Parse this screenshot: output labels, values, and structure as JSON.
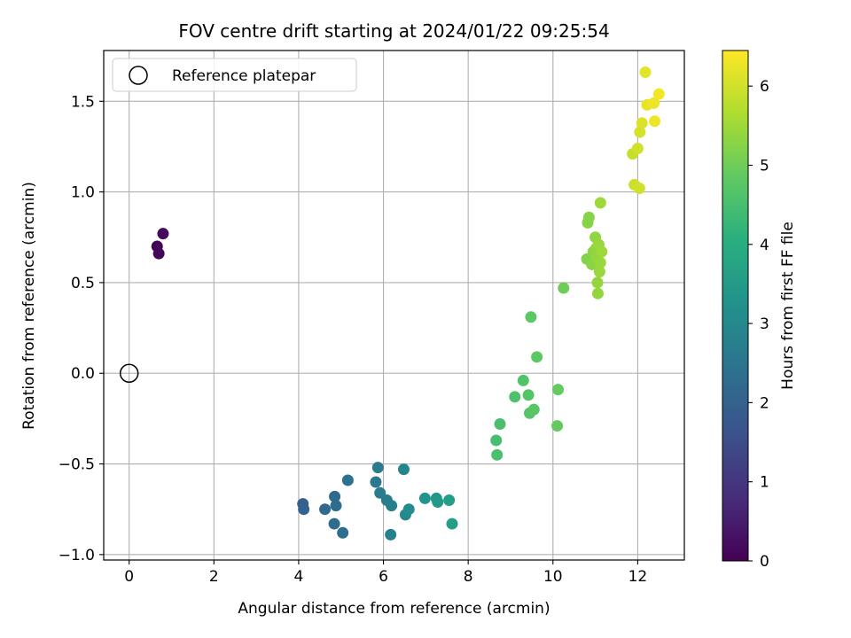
{
  "chart_data": {
    "type": "scatter",
    "title": "FOV centre drift starting at 2024/01/22 09:25:54",
    "xlabel": "Angular distance from reference (arcmin)",
    "ylabel": "Rotation from reference (arcmin)",
    "xlim": [
      -0.6,
      13.1
    ],
    "ylim": [
      -1.03,
      1.78
    ],
    "xticks": [
      0,
      2,
      4,
      6,
      8,
      10,
      12
    ],
    "yticks": [
      -1.0,
      -0.5,
      0.0,
      0.5,
      1.0,
      1.5
    ],
    "grid": true,
    "colormap": "viridis",
    "colorbar": {
      "label": "Hours from first FF file",
      "range": [
        0,
        6.45
      ],
      "ticks": [
        0,
        1,
        2,
        3,
        4,
        5,
        6
      ]
    },
    "legend": {
      "position": "upper-left",
      "entries": [
        "Reference platepar"
      ]
    },
    "reference_point": {
      "x": 0,
      "y": 0,
      "label": "Reference platepar"
    },
    "points": [
      {
        "x": 0.66,
        "y": 0.7,
        "c": 0.05
      },
      {
        "x": 0.7,
        "y": 0.66,
        "c": 0.1
      },
      {
        "x": 0.8,
        "y": 0.77,
        "c": 0.15
      },
      {
        "x": 4.1,
        "y": -0.72,
        "c": 2.0
      },
      {
        "x": 4.12,
        "y": -0.75,
        "c": 2.05
      },
      {
        "x": 4.62,
        "y": -0.75,
        "c": 2.2
      },
      {
        "x": 4.85,
        "y": -0.68,
        "c": 2.25
      },
      {
        "x": 4.88,
        "y": -0.73,
        "c": 2.3
      },
      {
        "x": 4.84,
        "y": -0.83,
        "c": 2.3
      },
      {
        "x": 5.04,
        "y": -0.88,
        "c": 2.35
      },
      {
        "x": 5.16,
        "y": -0.59,
        "c": 2.4
      },
      {
        "x": 5.82,
        "y": -0.6,
        "c": 2.6
      },
      {
        "x": 5.87,
        "y": -0.52,
        "c": 2.65
      },
      {
        "x": 5.92,
        "y": -0.66,
        "c": 2.65
      },
      {
        "x": 6.08,
        "y": -0.7,
        "c": 2.7
      },
      {
        "x": 6.19,
        "y": -0.73,
        "c": 2.75
      },
      {
        "x": 6.17,
        "y": -0.89,
        "c": 2.8
      },
      {
        "x": 6.48,
        "y": -0.53,
        "c": 2.9
      },
      {
        "x": 6.52,
        "y": -0.78,
        "c": 3.0
      },
      {
        "x": 6.6,
        "y": -0.75,
        "c": 3.1
      },
      {
        "x": 6.98,
        "y": -0.69,
        "c": 3.3
      },
      {
        "x": 7.25,
        "y": -0.69,
        "c": 3.4
      },
      {
        "x": 7.28,
        "y": -0.71,
        "c": 3.45
      },
      {
        "x": 7.55,
        "y": -0.7,
        "c": 3.55
      },
      {
        "x": 7.62,
        "y": -0.83,
        "c": 3.6
      },
      {
        "x": 8.66,
        "y": -0.37,
        "c": 4.5
      },
      {
        "x": 8.68,
        "y": -0.45,
        "c": 4.55
      },
      {
        "x": 8.75,
        "y": -0.28,
        "c": 4.55
      },
      {
        "x": 9.1,
        "y": -0.13,
        "c": 4.6
      },
      {
        "x": 9.3,
        "y": -0.04,
        "c": 4.65
      },
      {
        "x": 9.42,
        "y": -0.12,
        "c": 4.7
      },
      {
        "x": 9.45,
        "y": -0.22,
        "c": 4.7
      },
      {
        "x": 9.55,
        "y": -0.2,
        "c": 4.75
      },
      {
        "x": 9.48,
        "y": 0.31,
        "c": 4.8
      },
      {
        "x": 9.62,
        "y": 0.09,
        "c": 4.8
      },
      {
        "x": 10.1,
        "y": -0.29,
        "c": 4.9
      },
      {
        "x": 10.12,
        "y": -0.09,
        "c": 4.9
      },
      {
        "x": 10.25,
        "y": 0.47,
        "c": 5.0
      },
      {
        "x": 10.8,
        "y": 0.63,
        "c": 5.2
      },
      {
        "x": 10.82,
        "y": 0.83,
        "c": 5.25
      },
      {
        "x": 10.85,
        "y": 0.86,
        "c": 5.25
      },
      {
        "x": 10.92,
        "y": 0.6,
        "c": 5.3
      },
      {
        "x": 10.95,
        "y": 0.67,
        "c": 5.3
      },
      {
        "x": 11.0,
        "y": 0.75,
        "c": 5.35
      },
      {
        "x": 11.02,
        "y": 0.69,
        "c": 5.35
      },
      {
        "x": 11.04,
        "y": 0.64,
        "c": 5.4
      },
      {
        "x": 11.05,
        "y": 0.5,
        "c": 5.4
      },
      {
        "x": 11.06,
        "y": 0.44,
        "c": 5.4
      },
      {
        "x": 11.08,
        "y": 0.71,
        "c": 5.45
      },
      {
        "x": 11.1,
        "y": 0.56,
        "c": 5.45
      },
      {
        "x": 11.12,
        "y": 0.61,
        "c": 5.45
      },
      {
        "x": 11.12,
        "y": 0.94,
        "c": 5.5
      },
      {
        "x": 11.15,
        "y": 0.67,
        "c": 5.5
      },
      {
        "x": 11.88,
        "y": 1.21,
        "c": 5.9
      },
      {
        "x": 11.92,
        "y": 1.04,
        "c": 5.95
      },
      {
        "x": 12.0,
        "y": 1.24,
        "c": 6.0
      },
      {
        "x": 12.04,
        "y": 1.02,
        "c": 6.0
      },
      {
        "x": 12.05,
        "y": 1.33,
        "c": 6.05
      },
      {
        "x": 12.1,
        "y": 1.38,
        "c": 6.1
      },
      {
        "x": 12.18,
        "y": 1.66,
        "c": 6.2
      },
      {
        "x": 12.22,
        "y": 1.48,
        "c": 6.25
      },
      {
        "x": 12.38,
        "y": 1.49,
        "c": 6.3
      },
      {
        "x": 12.4,
        "y": 1.39,
        "c": 6.3
      },
      {
        "x": 12.5,
        "y": 1.54,
        "c": 6.35
      }
    ]
  }
}
